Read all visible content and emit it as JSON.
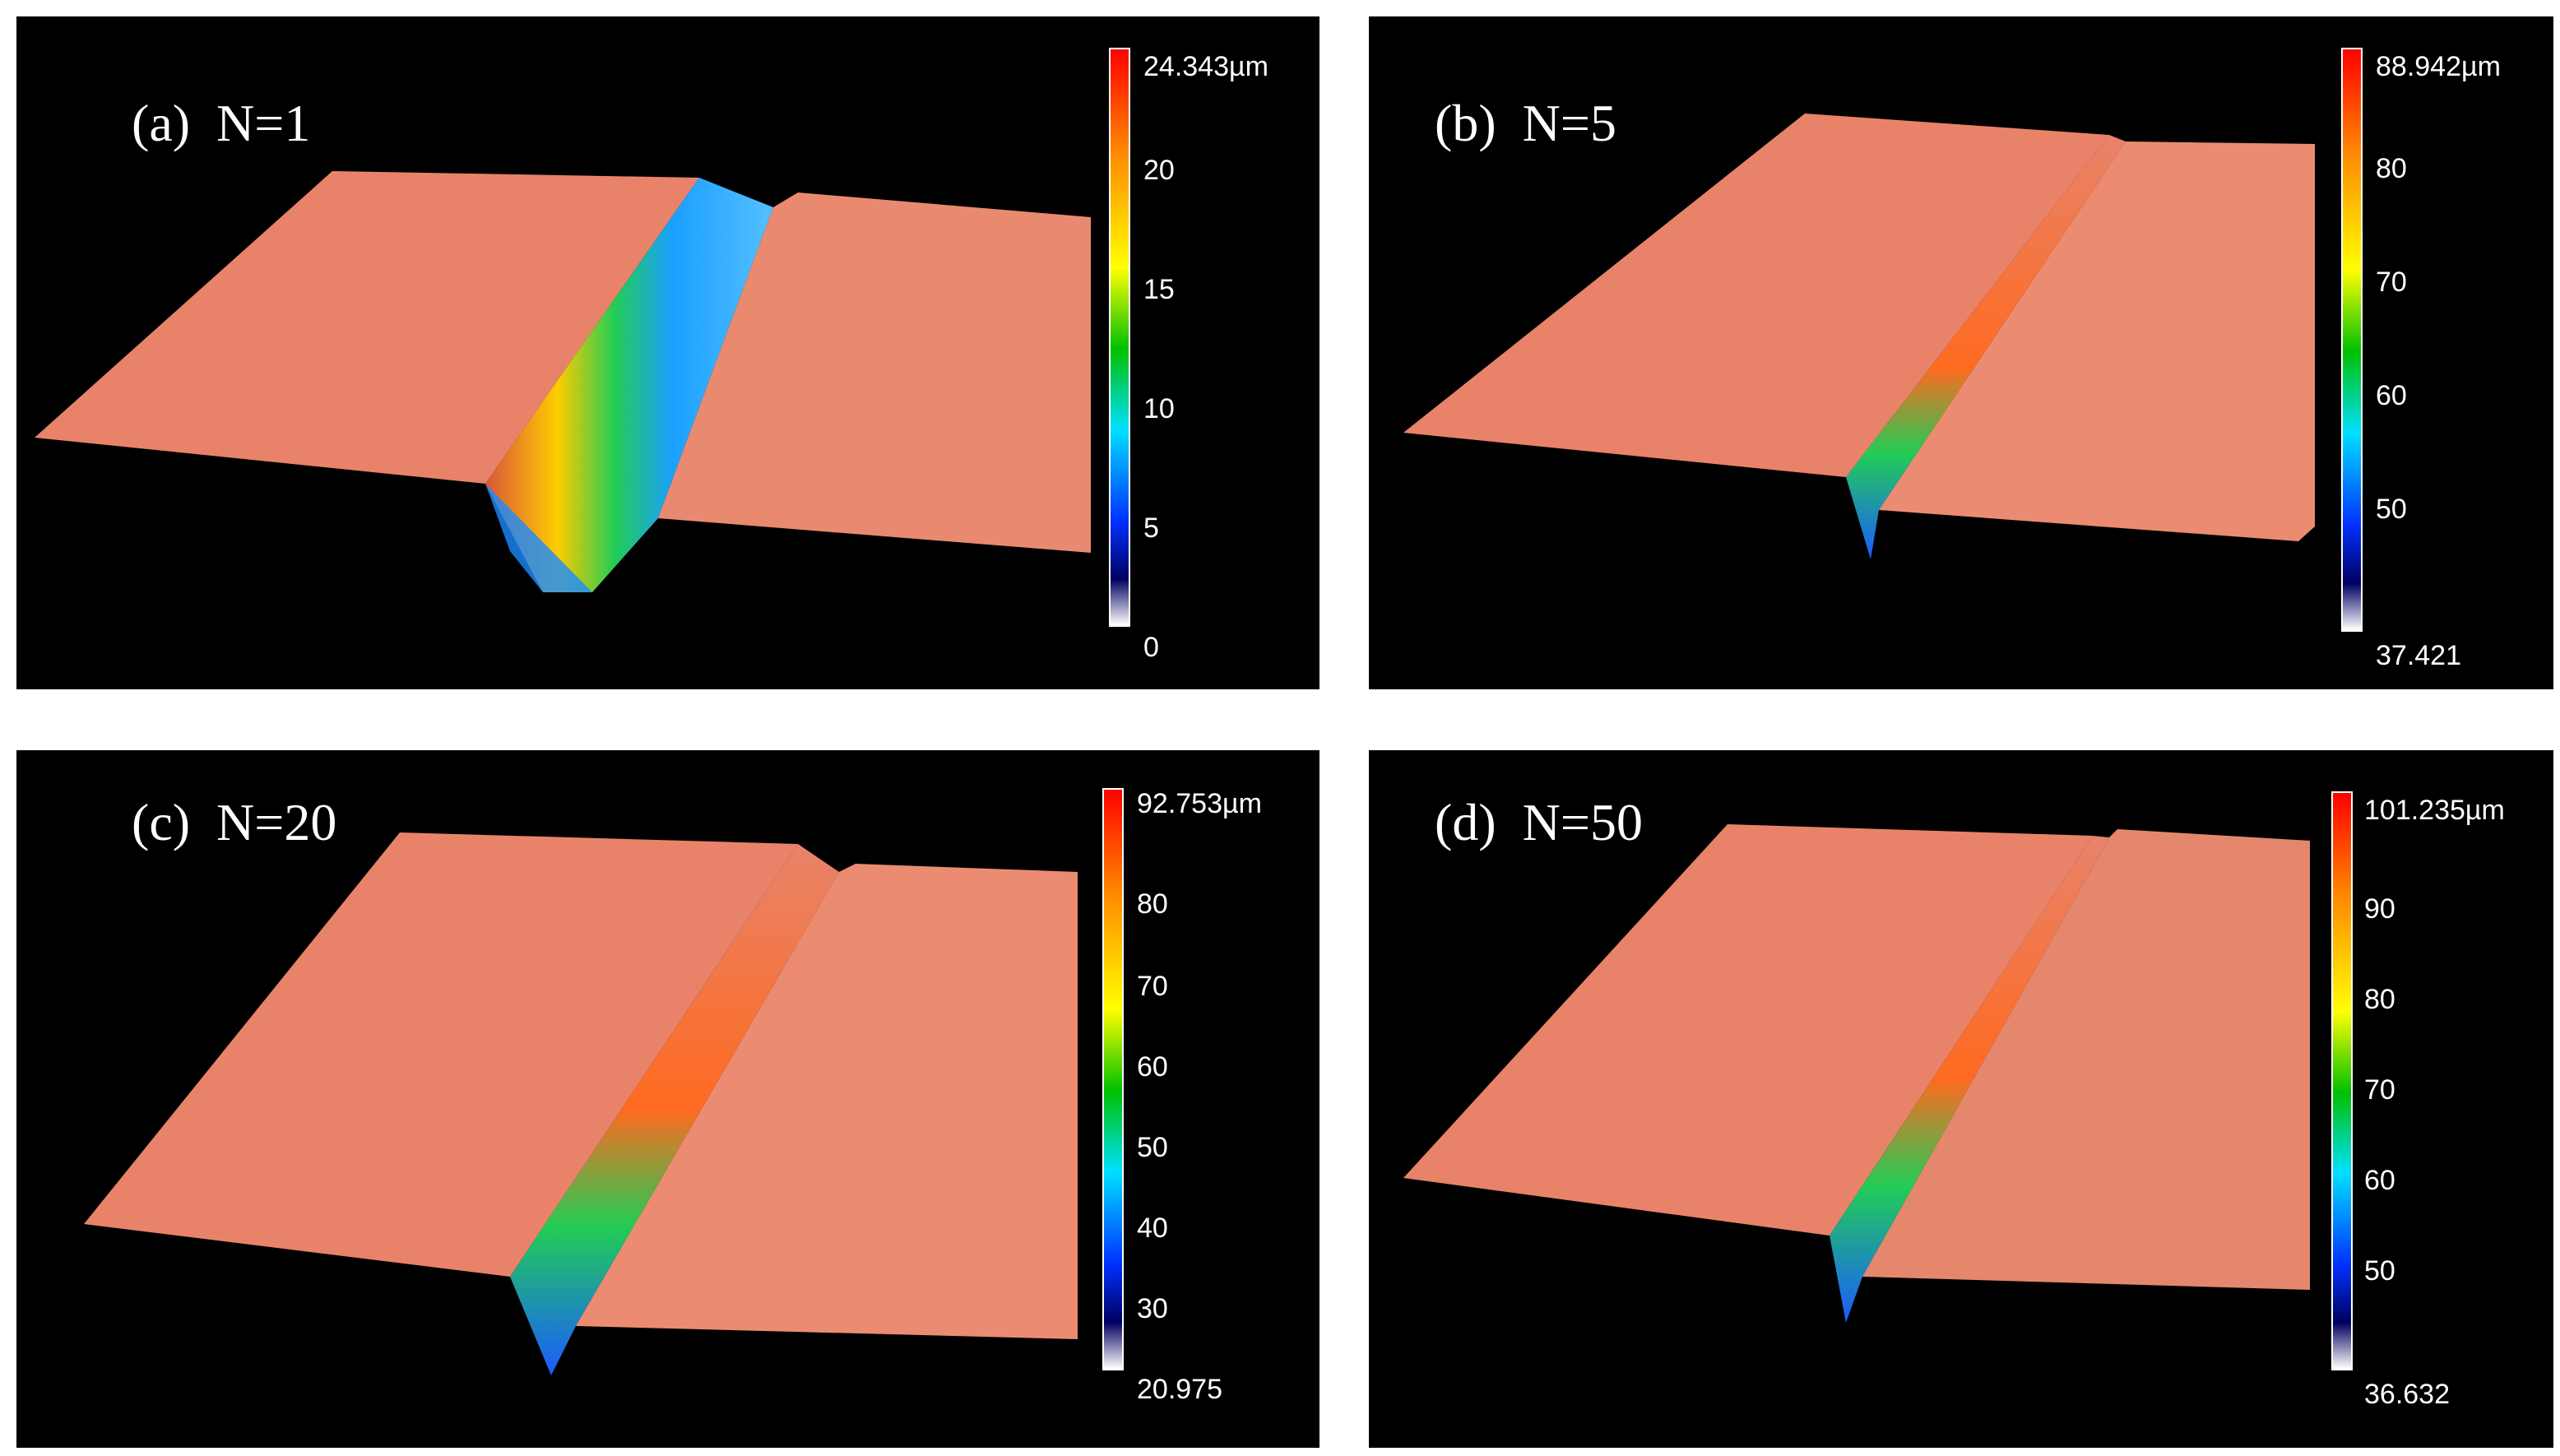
{
  "panels": [
    {
      "id": "a",
      "label": "(a)  N=1",
      "colorbar": {
        "max_label": "24.343µm",
        "ticks": [
          "20",
          "15",
          "10",
          "5"
        ],
        "min_label": "0"
      }
    },
    {
      "id": "b",
      "label": "(b)  N=5",
      "colorbar": {
        "max_label": "88.942µm",
        "ticks": [
          "80",
          "70",
          "60",
          "50"
        ],
        "min_label": "37.421"
      }
    },
    {
      "id": "c",
      "label": "(c)  N=20",
      "colorbar": {
        "max_label": "92.753µm",
        "ticks": [
          "80",
          "70",
          "60",
          "50",
          "40",
          "30"
        ],
        "min_label": "20.975"
      }
    },
    {
      "id": "d",
      "label": "(d)  N=50",
      "colorbar": {
        "max_label": "101.235µm",
        "ticks": [
          "90",
          "80",
          "70",
          "60",
          "50"
        ],
        "min_label": "36.632"
      }
    }
  ],
  "colors": {
    "background": "#000000",
    "surface": "#e8836a",
    "surface_dark": "#c96a52",
    "groove_high": "#ff5a2a",
    "groove_mid": "#1fd05a",
    "groove_low": "#1a6cff"
  }
}
